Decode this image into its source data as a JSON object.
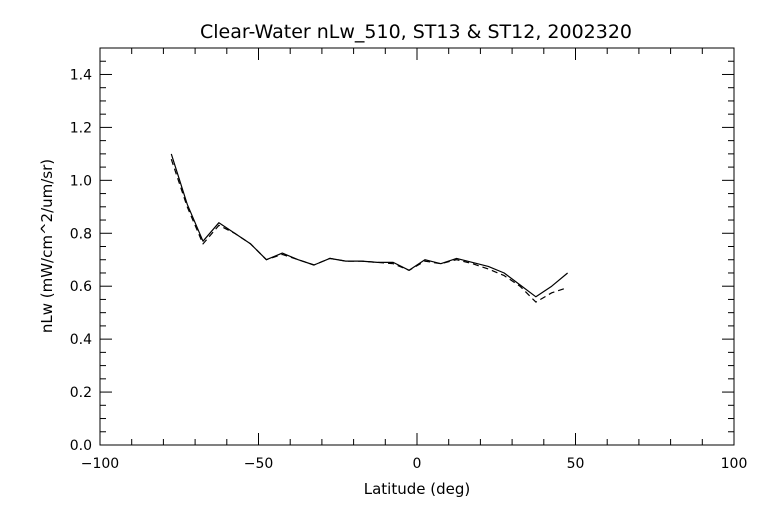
{
  "chart_data": {
    "type": "line",
    "title": "Clear-Water nLw_510, ST13 & ST12, 2002320",
    "xlabel": "Latitude (deg)",
    "ylabel": "nLw (mW/cm^2/um/sr)",
    "xlim": [
      -100,
      100
    ],
    "ylim": [
      0.0,
      1.5
    ],
    "xticks": [
      -100,
      -50,
      0,
      50,
      100
    ],
    "xtick_labels": [
      "−100",
      "−50",
      "0",
      "50",
      "100"
    ],
    "yticks": [
      0.0,
      0.2,
      0.4,
      0.6,
      0.8,
      1.0,
      1.2,
      1.4
    ],
    "ytick_labels": [
      "0.0",
      "0.2",
      "0.4",
      "0.6",
      "0.8",
      "1.0",
      "1.2",
      "1.4"
    ],
    "grid": false,
    "series": [
      {
        "style": "solid",
        "color": "#000000",
        "x": [
          -77.5,
          -72.5,
          -67.5,
          -62.5,
          -57.5,
          -52.5,
          -47.5,
          -42.5,
          -37.5,
          -32.5,
          -27.5,
          -22.5,
          -17.5,
          -12.5,
          -7.5,
          -2.5,
          2.5,
          7.5,
          12.5,
          17.5,
          22.5,
          27.5,
          32.5,
          37.5,
          42.5,
          47.5
        ],
        "y": [
          1.1,
          0.91,
          0.77,
          0.84,
          0.8,
          0.76,
          0.7,
          0.725,
          0.7,
          0.68,
          0.705,
          0.695,
          0.695,
          0.69,
          0.69,
          0.66,
          0.7,
          0.685,
          0.705,
          0.69,
          0.675,
          0.65,
          0.605,
          0.56,
          0.6,
          0.65
        ]
      },
      {
        "style": "dashed",
        "color": "#000000",
        "x": [
          -77.5,
          -72.5,
          -67.5,
          -62.5,
          -57.5,
          -52.5,
          -47.5,
          -42.5,
          -37.5,
          -32.5,
          -27.5,
          -22.5,
          -17.5,
          -12.5,
          -7.5,
          -2.5,
          2.5,
          7.5,
          12.5,
          17.5,
          22.5,
          27.5,
          32.5,
          37.5,
          42.5,
          47.5
        ],
        "y": [
          1.08,
          0.9,
          0.76,
          0.83,
          0.8,
          0.76,
          0.7,
          0.72,
          0.7,
          0.68,
          0.705,
          0.695,
          0.695,
          0.69,
          0.685,
          0.66,
          0.695,
          0.685,
          0.7,
          0.685,
          0.665,
          0.64,
          0.6,
          0.54,
          0.575,
          0.595
        ]
      }
    ]
  }
}
